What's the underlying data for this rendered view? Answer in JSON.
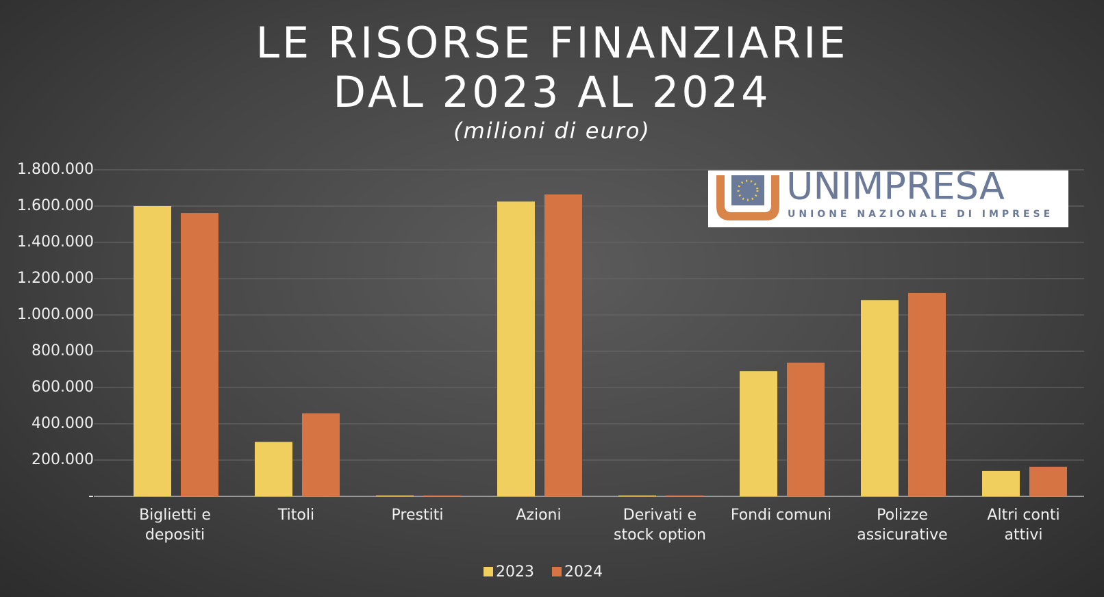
{
  "chart_data": {
    "type": "bar",
    "title": [
      "LE RISORSE FINANZIARIE",
      "DAL 2023 AL 2024"
    ],
    "subtitle": "(milioni di euro)",
    "categories": [
      "Biglietti e depositi",
      "Titoli",
      "Prestiti",
      "Azioni",
      "Derivati e stock option",
      "Fondi comuni",
      "Polizze assicurative",
      "Altri conti attivi"
    ],
    "series": [
      {
        "name": "2023",
        "color": "#f0cf5f",
        "values": [
          1600000,
          300000,
          5000,
          1625000,
          5000,
          690000,
          1082000,
          140000
        ]
      },
      {
        "name": "2024",
        "color": "#d67443",
        "values": [
          1562000,
          458000,
          5000,
          1664000,
          5000,
          737000,
          1121000,
          163000
        ]
      }
    ],
    "ylim": [
      0,
      1800000
    ],
    "yticks": [
      {
        "value": 0,
        "label": "-"
      },
      {
        "value": 200000,
        "label": "200.000"
      },
      {
        "value": 400000,
        "label": "400.000"
      },
      {
        "value": 600000,
        "label": "600.000"
      },
      {
        "value": 800000,
        "label": "800.000"
      },
      {
        "value": 1000000,
        "label": "1.000.000"
      },
      {
        "value": 1200000,
        "label": "1.200.000"
      },
      {
        "value": 1400000,
        "label": "1.400.000"
      },
      {
        "value": 1600000,
        "label": "1.600.000"
      },
      {
        "value": 1800000,
        "label": "1.800.000"
      }
    ],
    "grid": true,
    "legend": "bottom"
  },
  "logo": {
    "name": "UNIMPRESA",
    "tagline": "UNIONE NAZIONALE DI IMPRESE"
  }
}
